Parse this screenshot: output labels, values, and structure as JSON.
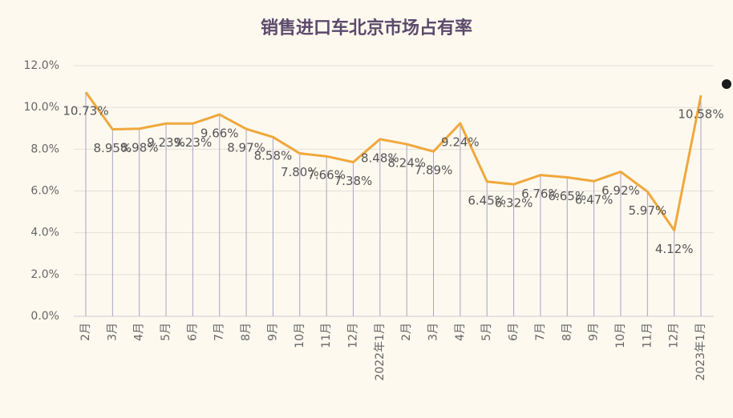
{
  "chart_data": {
    "type": "line",
    "title": "销售进口车北京市场占有率",
    "categories": [
      "2月",
      "3月",
      "4月",
      "5月",
      "6月",
      "7月",
      "8月",
      "9月",
      "10月",
      "11月",
      "12月",
      "2022年1月",
      "2月",
      "3月",
      "4月",
      "5月",
      "6月",
      "7月",
      "8月",
      "9月",
      "10月",
      "11月",
      "12月",
      "2023年1月"
    ],
    "values": [
      10.73,
      8.95,
      8.98,
      9.23,
      9.23,
      9.66,
      8.97,
      8.58,
      7.8,
      7.66,
      7.38,
      8.48,
      8.24,
      7.89,
      9.24,
      6.45,
      6.32,
      6.76,
      6.65,
      6.47,
      6.92,
      5.97,
      4.12,
      10.58
    ],
    "value_labels": [
      "10.73%",
      "8.95%",
      "8.98%",
      "9.23%",
      "9.23%",
      "9.66%",
      "8.97%",
      "8.58%",
      "7.80%",
      "7.66%",
      "7.38%",
      "8.48%",
      "8.24%",
      "7.89%",
      "9.24%",
      "6.45%",
      "6.32%",
      "6.76%",
      "6.65%",
      "6.47%",
      "6.92%",
      "5.97%",
      "4.12%",
      "10.58%"
    ],
    "color": "#f0a83c",
    "ylim": [
      0,
      12
    ],
    "yticks": [
      {
        "value": 0,
        "label": "0.0%"
      },
      {
        "value": 2,
        "label": "2.0%"
      },
      {
        "value": 4,
        "label": "4.0%"
      },
      {
        "value": 6,
        "label": "6.0%"
      },
      {
        "value": 8,
        "label": "8.0%"
      },
      {
        "value": 10,
        "label": "10.0%"
      },
      {
        "value": 12,
        "label": "12.0%"
      }
    ],
    "grid": true
  }
}
